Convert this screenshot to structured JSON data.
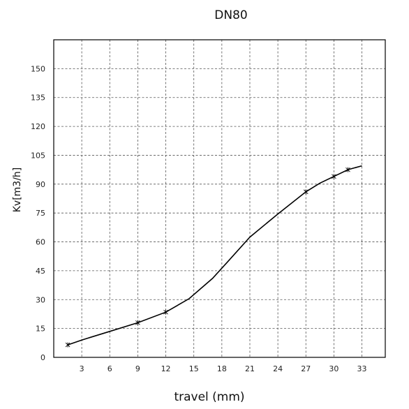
{
  "chart_data": {
    "type": "line",
    "title": "DN80",
    "xlabel": "travel (mm)",
    "ylabel": "Kv[m3/h]",
    "xlim": [
      0,
      35.5
    ],
    "ylim": [
      0,
      165
    ],
    "x_ticks": [
      3,
      6,
      9,
      12,
      15,
      18,
      21,
      24,
      27,
      30,
      33
    ],
    "y_ticks": [
      0,
      15,
      30,
      45,
      60,
      75,
      90,
      105,
      120,
      135,
      150
    ],
    "grid": true,
    "series": [
      {
        "x": [
          1.5,
          3,
          6,
          9,
          12,
          14.5,
          17,
          18.5,
          21,
          24,
          27,
          28.5,
          30,
          31.5,
          33
        ],
        "y": [
          6.5,
          9,
          13.5,
          18,
          23.5,
          30.5,
          41,
          49,
          62.5,
          74.5,
          86,
          90.5,
          94,
          97.5,
          99.5
        ]
      }
    ],
    "marker_x": [
      1.5,
      9,
      12,
      27,
      30,
      31.5
    ]
  }
}
